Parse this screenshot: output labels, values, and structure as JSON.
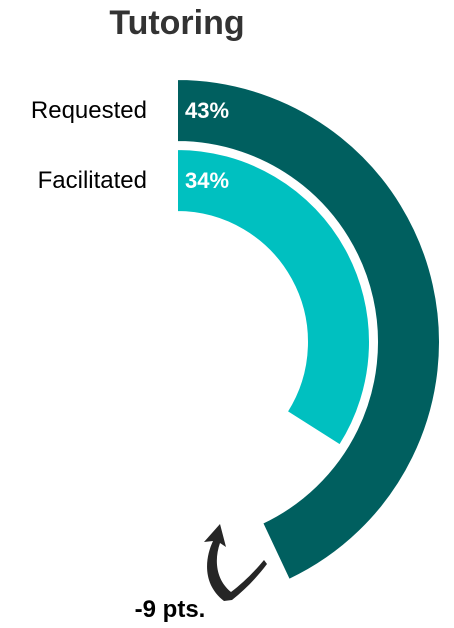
{
  "chart_data": {
    "type": "radial-bar",
    "title": "Tutoring",
    "series": [
      {
        "name": "Requested",
        "value": 43,
        "value_label": "43%",
        "color": "#005f5f"
      },
      {
        "name": "Facilitated",
        "value": 34,
        "value_label": "34%",
        "color": "#00c0c0"
      }
    ],
    "difference_label": "-9 pts.",
    "arrow_color": "#262626",
    "label_color": "#ffffff",
    "text_color": "#000000"
  }
}
